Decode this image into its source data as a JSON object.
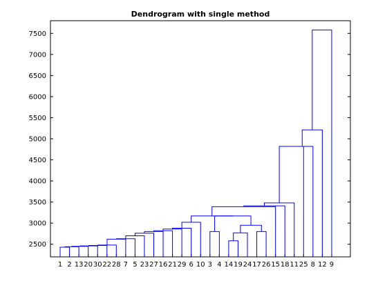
{
  "chart_data": {
    "type": "dendrogram",
    "title": "Dendrogram with single method",
    "xlabel": "",
    "ylabel": "",
    "ylim": [
      2200,
      7800
    ],
    "yticks": [
      2500,
      3000,
      3500,
      4000,
      4500,
      5000,
      5500,
      6000,
      6500,
      7000,
      7500
    ],
    "grid": false,
    "leaf_order": [
      "1",
      "2",
      "13",
      "20",
      "30",
      "22",
      "28",
      "7",
      "5",
      "23",
      "27",
      "16",
      "21",
      "29",
      "6",
      "10",
      "3",
      "4",
      "14",
      "19",
      "24",
      "17",
      "26",
      "15",
      "18",
      "11",
      "25",
      "8",
      "12",
      "9"
    ],
    "merges": [
      {
        "left": "1",
        "right": "2",
        "height": 2430
      },
      {
        "left": "1+2",
        "right": "13",
        "height": 2440
      },
      {
        "left": "1+2+13",
        "right": "20",
        "height": 2450
      },
      {
        "left": "…+20",
        "right": "30",
        "height": 2460
      },
      {
        "left": "…+30",
        "right": "22",
        "height": 2470
      },
      {
        "left": "…+22",
        "right": "28",
        "height": 2480
      },
      {
        "left": "…+28",
        "right": "7",
        "height": 2620
      },
      {
        "left": "…+7",
        "right": "5",
        "height": 2630
      },
      {
        "left": "…+5",
        "right": "23",
        "height": 2700
      },
      {
        "left": "…+23",
        "right": "27",
        "height": 2760
      },
      {
        "left": "…+27",
        "right": "16",
        "height": 2800
      },
      {
        "left": "…+16",
        "right": "21",
        "height": 2820
      },
      {
        "left": "…+21",
        "right": "29",
        "height": 2860
      },
      {
        "left": "…+29",
        "right": "6",
        "height": 2880
      },
      {
        "left": "3",
        "right": "4",
        "height": 2800
      },
      {
        "left": "14",
        "right": "19",
        "height": 2580
      },
      {
        "left": "14+19",
        "right": "24",
        "height": 2770
      },
      {
        "left": "17",
        "right": "26",
        "height": 2800
      },
      {
        "left": "14+19+24",
        "right": "17+26",
        "height": 2950
      },
      {
        "left": "…+6",
        "right": "10",
        "height": 3020
      },
      {
        "left": "3+4",
        "right": "14…26",
        "height": 3170
      },
      {
        "left": "1…10",
        "right": "3…26",
        "height": 3170
      },
      {
        "left": "1…26",
        "right": "15",
        "height": 3390
      },
      {
        "left": "…+15",
        "right": "18",
        "height": 3410
      },
      {
        "left": "…+18",
        "right": "11",
        "height": 3480
      },
      {
        "left": "…+11",
        "right": "25",
        "height": 4820
      },
      {
        "left": "…+25",
        "right": "8",
        "height": 4820
      },
      {
        "left": "…+8",
        "right": "12",
        "height": 5210
      },
      {
        "left": "…+12",
        "right": "9",
        "height": 7580
      }
    ],
    "colors": {
      "links": "#0000ff",
      "axes": "#000000"
    }
  }
}
